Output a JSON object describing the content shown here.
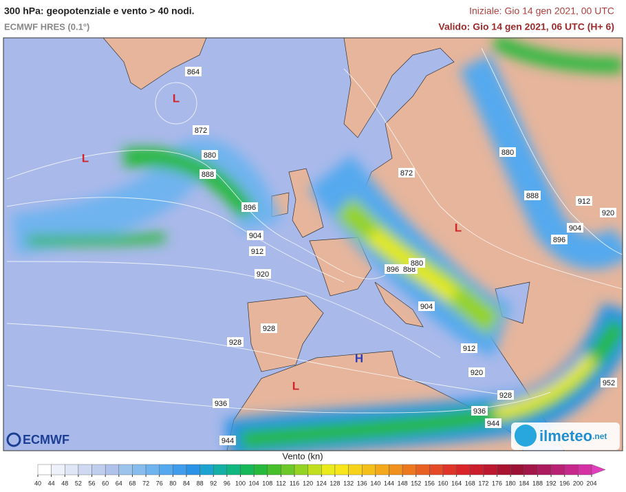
{
  "header": {
    "title": "300 hPa: geopotenziale e vento > 40 nodi.",
    "subtitle": "ECMWF HRES (0.1°)",
    "init": "Iniziale: Gio 14 gen 2021, 00 UTC",
    "valid": "Valido: Gio 14 gen 2021, 06 UTC (H+ 6)"
  },
  "map": {
    "contour_labels": [
      864,
      872,
      880,
      888,
      896,
      904,
      912,
      920,
      872,
      880,
      888,
      912,
      920,
      904,
      896,
      896,
      888,
      880,
      904,
      912,
      920,
      928,
      936,
      944,
      952,
      928,
      928,
      936,
      944
    ],
    "pressure_centers": [
      {
        "label": "L",
        "color": "#d0262a"
      },
      {
        "label": "L",
        "color": "#d0262a"
      },
      {
        "label": "L",
        "color": "#d0262a"
      },
      {
        "label": "L",
        "color": "#d0262a"
      },
      {
        "label": "H",
        "color": "#2a3fc0"
      }
    ]
  },
  "legend": {
    "title": "Vento (kn)",
    "ticks": [
      40,
      44,
      48,
      52,
      56,
      60,
      64,
      68,
      72,
      76,
      80,
      84,
      88,
      92,
      96,
      100,
      104,
      108,
      112,
      116,
      120,
      124,
      128,
      132,
      136,
      140,
      144,
      148,
      152,
      156,
      160,
      164,
      168,
      172,
      176,
      180,
      184,
      188,
      192,
      196,
      200,
      204
    ],
    "colors": [
      "#ffffff",
      "#eef1fa",
      "#dfe6f6",
      "#cfd9f2",
      "#bfcdee",
      "#b0c1ea",
      "#9cc3ec",
      "#86bdee",
      "#6fb4ef",
      "#55a9ee",
      "#3f9deb",
      "#2b93e6",
      "#1da3cf",
      "#14b0a6",
      "#10b880",
      "#17b85a",
      "#27b93b",
      "#46bf2a",
      "#6bc826",
      "#95d322",
      "#c2df1f",
      "#eaeb1c",
      "#f6e61a",
      "#f6d31a",
      "#f5bf1a",
      "#f4a81b",
      "#f0901d",
      "#ec781f",
      "#e86022",
      "#e44a25",
      "#df3528",
      "#d9252a",
      "#cc1d2c",
      "#bc172e",
      "#aa1330",
      "#9c1236",
      "#a3164a",
      "#ad1b5f",
      "#b92175",
      "#c7288c",
      "#d530a4",
      "#e03ebb"
    ]
  },
  "logos": {
    "ecmwf": "ECMWF",
    "ilmeteo": "ilmeteo",
    "ilmeteo_suffix": ".net"
  }
}
